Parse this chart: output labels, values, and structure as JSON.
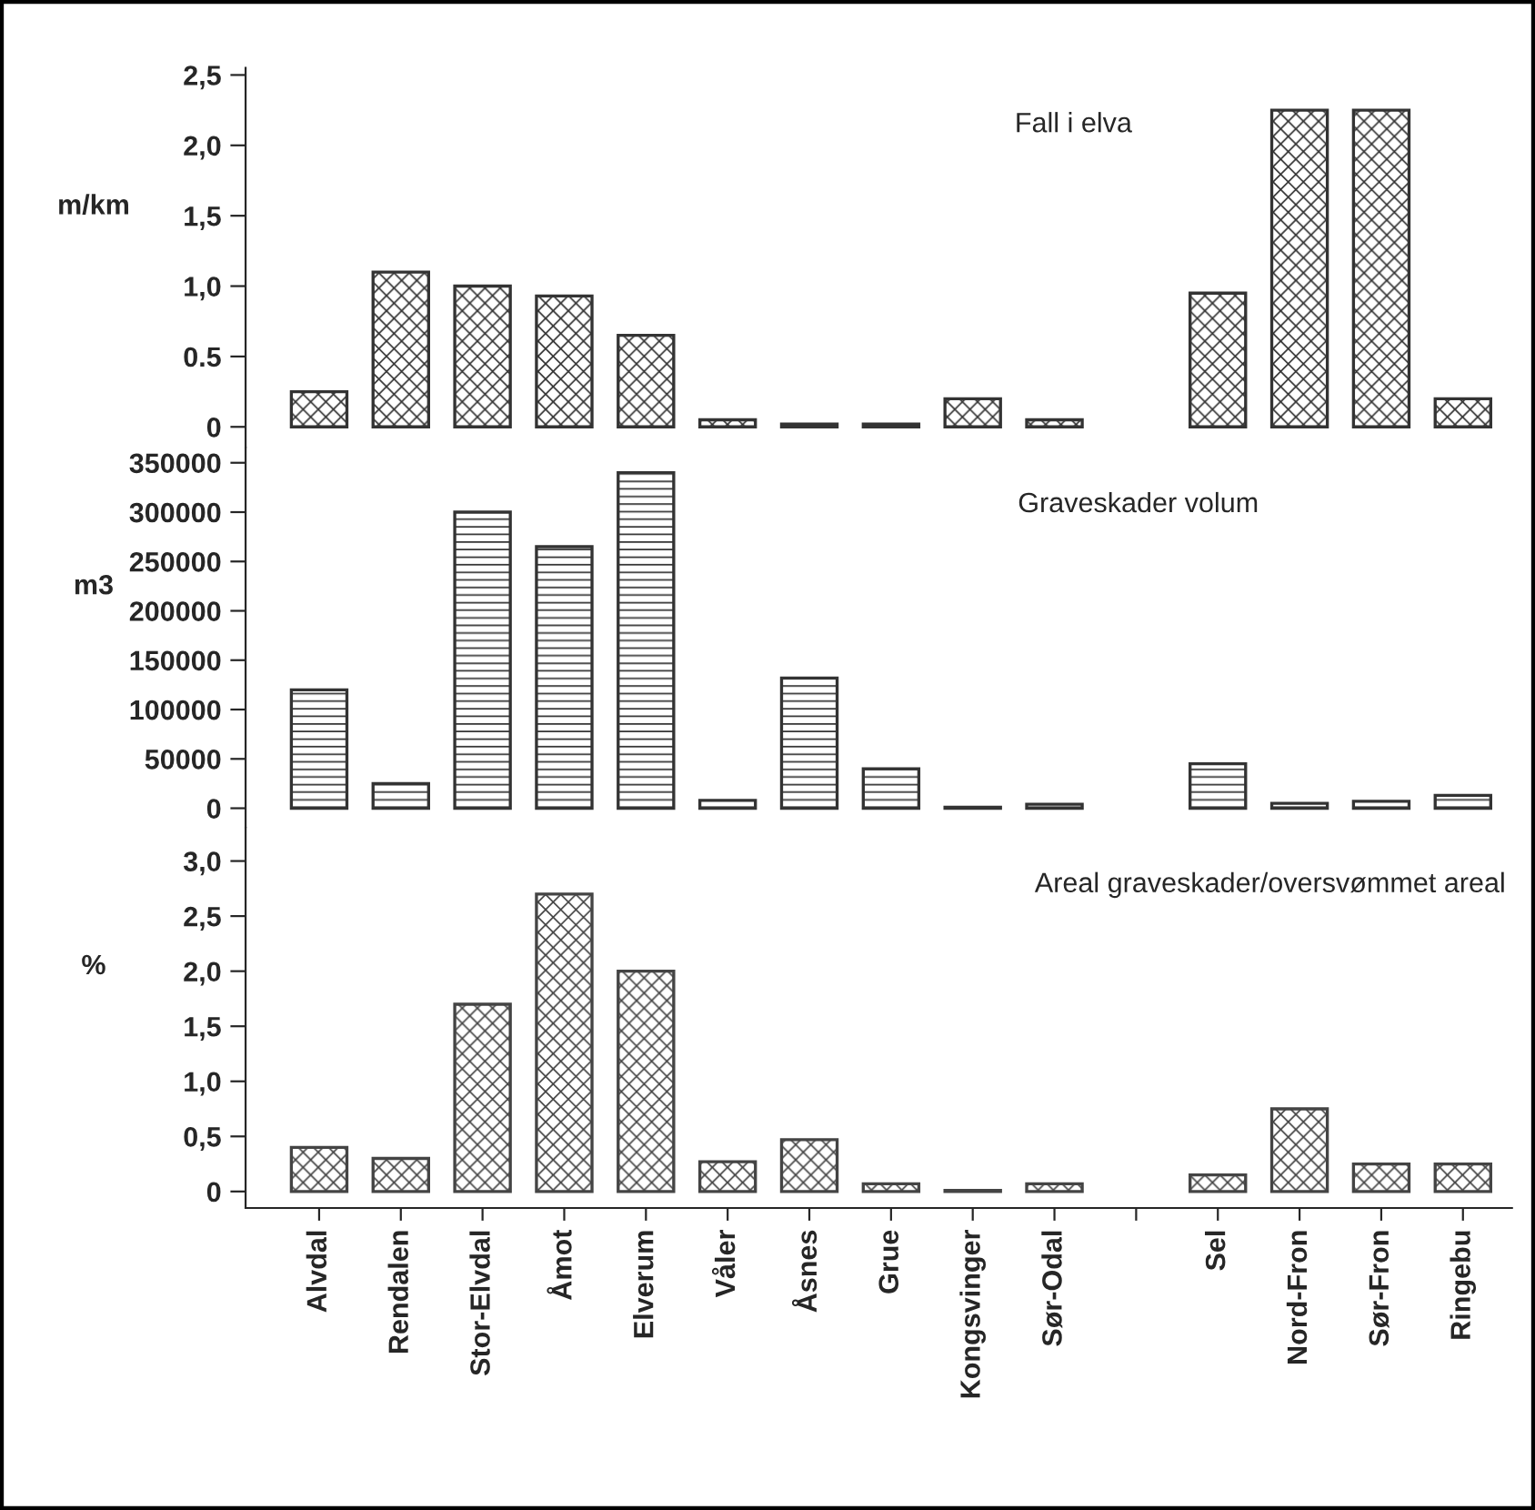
{
  "chart_data": [
    {
      "type": "bar",
      "title": "Fall i elva",
      "ylabel": "m/km",
      "tick_labels": "y",
      "grid": false,
      "legend": false,
      "categories": [
        "Alvdal",
        "Rendalen",
        "Stor-Elvdal",
        "Åmot",
        "Elverum",
        "Våler",
        "Åsnes",
        "Grue",
        "Kongsvinger",
        "Sør-Odal",
        null,
        "Sel",
        "Nord-Fron",
        "Sør-Fron",
        "Ringebu"
      ],
      "values": [
        0.25,
        1.1,
        1.0,
        0.93,
        0.65,
        0.05,
        0.02,
        0.02,
        0.2,
        0.05,
        null,
        0.95,
        2.25,
        2.25,
        0.2
      ],
      "color": "#333333",
      "ylim": [
        -0.15,
        2.55
      ],
      "yticks": [
        0,
        {
          "value": 0.5,
          "label": "0.5"
        },
        {
          "value": 1.0,
          "label": "1,0"
        },
        {
          "value": 1.5,
          "label": "1,5"
        },
        {
          "value": 2.0,
          "label": "2,0"
        },
        {
          "value": 2.5,
          "label": "2,5"
        }
      ]
    },
    {
      "type": "bar",
      "title": "Graveskader volum",
      "ylabel": "m3",
      "tick_labels": "y",
      "grid": false,
      "legend": false,
      "categories": [
        "Alvdal",
        "Rendalen",
        "Stor-Elvdal",
        "Åmot",
        "Elverum",
        "Våler",
        "Åsnes",
        "Grue",
        "Kongsvinger",
        "Sør-Odal",
        null,
        "Sel",
        "Nord-Fron",
        "Sør-Fron",
        "Ringebu"
      ],
      "values": [
        120000,
        25000,
        300000,
        265000,
        340000,
        8000,
        132000,
        40000,
        1000,
        4000,
        null,
        45000,
        5000,
        7000,
        13000
      ],
      "color": "#333333",
      "ylim": [
        -20000,
        365000
      ],
      "yticks": [
        0,
        50000,
        100000,
        150000,
        200000,
        250000,
        300000,
        350000
      ]
    },
    {
      "type": "bar",
      "title": "Areal graveskader/oversvømmet areal",
      "ylabel": "%",
      "grid": false,
      "legend": false,
      "categories": [
        "Alvdal",
        "Rendalen",
        "Stor-Elvdal",
        "Åmot",
        "Elverum",
        "Våler",
        "Åsnes",
        "Grue",
        "Kongsvinger",
        "Sør-Odal",
        null,
        "Sel",
        "Nord-Fron",
        "Sør-Fron",
        "Ringebu"
      ],
      "values": [
        0.4,
        0.3,
        1.7,
        2.7,
        2.0,
        0.27,
        0.47,
        0.07,
        0.01,
        0.07,
        null,
        0.15,
        0.75,
        0.25,
        0.25
      ],
      "color": "#444444",
      "ylim": [
        -0.15,
        3.3
      ],
      "yticks": [
        0,
        {
          "value": 0.5,
          "label": "0,5"
        },
        {
          "value": 1.0,
          "label": "1,0"
        },
        {
          "value": 1.5,
          "label": "1,5"
        },
        {
          "value": 2.0,
          "label": "2,0"
        },
        {
          "value": 2.5,
          "label": "2,5"
        },
        {
          "value": 3.0,
          "label": "3,0"
        }
      ]
    }
  ]
}
